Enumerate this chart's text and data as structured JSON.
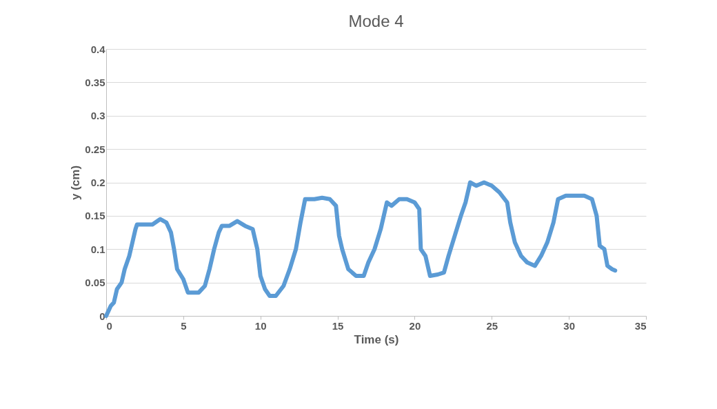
{
  "chart_data": {
    "type": "line",
    "title": "Mode 4",
    "xlabel": "Time (s)",
    "ylabel": "y (cm)",
    "xlim": [
      0,
      35
    ],
    "xticks": [
      0,
      5,
      10,
      15,
      20,
      25,
      30,
      35
    ],
    "ylim": [
      0,
      0.4
    ],
    "yticks": [
      0,
      0.05,
      0.1,
      0.15,
      0.2,
      0.25,
      0.3,
      0.35,
      0.4
    ],
    "grid": "y",
    "marker": "none",
    "line_style": "solid",
    "x": [
      0,
      0.3,
      0.5,
      0.7,
      1.0,
      1.2,
      1.5,
      1.7,
      1.9,
      2.0,
      2.5,
      3.0,
      3.5,
      3.9,
      4.2,
      4.4,
      4.6,
      5.0,
      5.3,
      5.6,
      6.0,
      6.4,
      6.7,
      7.0,
      7.3,
      7.5,
      8.0,
      8.5,
      9.0,
      9.5,
      9.8,
      10.0,
      10.3,
      10.6,
      11.0,
      11.5,
      11.9,
      12.3,
      12.6,
      12.9,
      13.5,
      14.0,
      14.5,
      14.9,
      15.1,
      15.3,
      15.7,
      16.2,
      16.7,
      17.0,
      17.4,
      17.8,
      18.2,
      18.5,
      19.0,
      19.5,
      20.0,
      20.3,
      20.4,
      20.7,
      21.0,
      21.5,
      21.9,
      22.2,
      22.6,
      23.0,
      23.3,
      23.6,
      24.0,
      24.5,
      25.0,
      25.5,
      26.0,
      26.2,
      26.5,
      26.9,
      27.3,
      27.8,
      28.2,
      28.6,
      29.0,
      29.3,
      29.8,
      30.5,
      31.0,
      31.5,
      31.8,
      32.0,
      32.3,
      32.5,
      32.8,
      33.0
    ],
    "series": [
      {
        "color": "#5b9bd5",
        "values": [
          0,
          0.015,
          0.02,
          0.04,
          0.05,
          0.07,
          0.09,
          0.11,
          0.13,
          0.137,
          0.137,
          0.137,
          0.145,
          0.14,
          0.125,
          0.1,
          0.07,
          0.055,
          0.035,
          0.035,
          0.035,
          0.045,
          0.07,
          0.1,
          0.125,
          0.135,
          0.135,
          0.142,
          0.135,
          0.13,
          0.1,
          0.06,
          0.04,
          0.03,
          0.03,
          0.045,
          0.07,
          0.1,
          0.14,
          0.175,
          0.175,
          0.177,
          0.175,
          0.165,
          0.12,
          0.1,
          0.07,
          0.06,
          0.06,
          0.08,
          0.1,
          0.13,
          0.17,
          0.165,
          0.175,
          0.175,
          0.17,
          0.16,
          0.1,
          0.09,
          0.06,
          0.062,
          0.065,
          0.09,
          0.12,
          0.15,
          0.17,
          0.2,
          0.195,
          0.2,
          0.195,
          0.185,
          0.17,
          0.14,
          0.11,
          0.09,
          0.08,
          0.075,
          0.09,
          0.11,
          0.14,
          0.175,
          0.18,
          0.18,
          0.18,
          0.175,
          0.15,
          0.105,
          0.1,
          0.075,
          0.07,
          0.068
        ]
      }
    ]
  }
}
